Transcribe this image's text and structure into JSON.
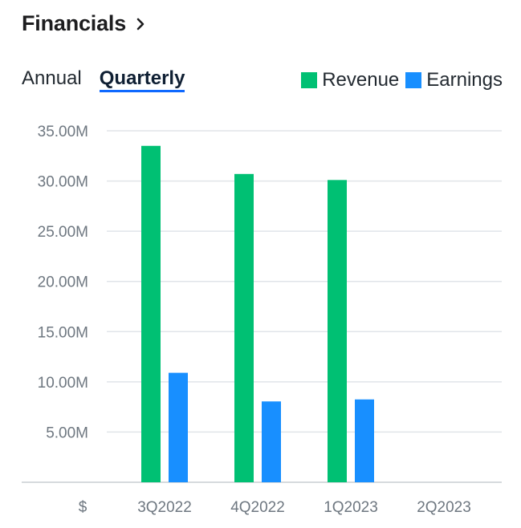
{
  "header": {
    "title": "Financials"
  },
  "tabs": [
    {
      "label": "Annual",
      "active": false
    },
    {
      "label": "Quarterly",
      "active": true
    }
  ],
  "legend": [
    {
      "label": "Revenue",
      "color": "#00c073"
    },
    {
      "label": "Earnings",
      "color": "#188fff"
    }
  ],
  "chart_data": {
    "type": "bar",
    "categories": [
      "3Q2022",
      "4Q2022",
      "1Q2023",
      "2Q2023"
    ],
    "series": [
      {
        "name": "Revenue",
        "color": "#00c073",
        "values": [
          33.5,
          30.7,
          30.1,
          null
        ]
      },
      {
        "name": "Earnings",
        "color": "#188fff",
        "values": [
          10.9,
          8.05,
          8.25,
          null
        ]
      }
    ],
    "ylim": [
      0,
      35
    ],
    "yticks": [
      5,
      10,
      15,
      20,
      25,
      30,
      35
    ],
    "ytick_labels": [
      "5.00M",
      "10.00M",
      "15.00M",
      "20.00M",
      "25.00M",
      "30.00M",
      "35.00M"
    ],
    "x_axis_unit_label": "$",
    "unit": "millions USD",
    "grid": true
  }
}
